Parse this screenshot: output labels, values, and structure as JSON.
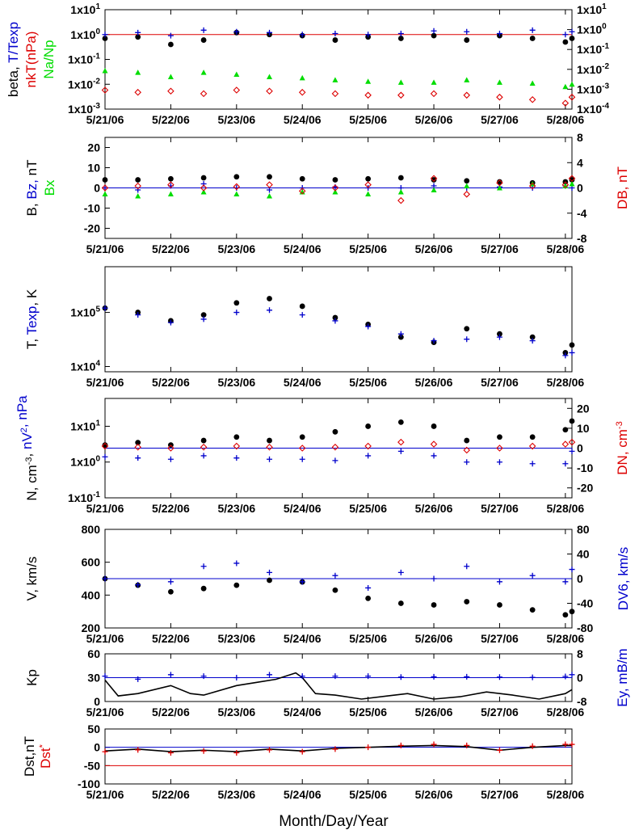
{
  "figure": {
    "x_axis_title": "Month/Day/Year",
    "date_ticks": [
      "5/21/06",
      "5/22/06",
      "5/23/06",
      "5/24/06",
      "5/25/06",
      "5/26/06",
      "5/27/06",
      "5/28/06"
    ],
    "x_range_days": [
      0,
      7.1
    ],
    "colors": {
      "black": "#000000",
      "blue": "#0000cc",
      "red": "#dd0000",
      "green": "#00dd00"
    }
  },
  "chart_data": [
    {
      "type": "scatter",
      "panel": "beta",
      "ylabel_parts": [
        {
          "text": "beta, ",
          "color": "#000000"
        },
        {
          "text": "T/Texp",
          "color": "#0000cc"
        },
        {
          "text": "nkT(nPa)",
          "color": "#dd0000"
        },
        {
          "text": "Na/Np",
          "color": "#00dd00"
        }
      ],
      "y_scale": "log",
      "ylim": [
        0.001,
        10
      ],
      "left_ticks": [
        {
          "base": "1x10",
          "exp": "-3"
        },
        {
          "base": "1x10",
          "exp": "-2"
        },
        {
          "base": "1x10",
          "exp": "-1"
        },
        {
          "base": "1x10",
          "exp": "0"
        },
        {
          "base": "1x10",
          "exp": "1"
        }
      ],
      "right_ylim": [
        0.0001,
        10
      ],
      "right_ticks": [
        {
          "base": "1x10",
          "exp": "-4"
        },
        {
          "base": "1x10",
          "exp": "-3"
        },
        {
          "base": "1x10",
          "exp": "-2"
        },
        {
          "base": "1x10",
          "exp": "-1"
        },
        {
          "base": "1x10",
          "exp": "0"
        },
        {
          "base": "1x10",
          "exp": "1"
        }
      ],
      "reference_line": 1.0,
      "series": [
        {
          "axis": "left",
          "color": "#000000",
          "marker": "dot",
          "x": [
            0,
            0.5,
            1,
            1.5,
            2,
            2.5,
            3,
            3.5,
            4,
            4.5,
            5,
            5.5,
            6,
            6.5,
            7,
            7.1
          ],
          "y": [
            0.7,
            0.8,
            0.4,
            0.6,
            1.2,
            1.0,
            0.9,
            0.6,
            0.8,
            0.7,
            0.9,
            0.6,
            0.9,
            0.7,
            0.5,
            0.7
          ]
        },
        {
          "axis": "left",
          "color": "#0000cc",
          "marker": "plus",
          "x": [
            0,
            0.5,
            1,
            1.5,
            2,
            2.5,
            3,
            3.5,
            4,
            4.5,
            5,
            5.5,
            6,
            6.5,
            7,
            7.1
          ],
          "y": [
            1.0,
            1.2,
            0.9,
            1.5,
            1.3,
            1.2,
            1.0,
            1.1,
            1.0,
            1.1,
            1.4,
            1.3,
            1.1,
            1.5,
            1.0,
            1.3
          ]
        },
        {
          "axis": "left",
          "color": "#00dd00",
          "marker": "triangle",
          "x": [
            0,
            0.5,
            1,
            1.5,
            2,
            2.5,
            3,
            3.5,
            4,
            4.5,
            5,
            5.5,
            6,
            6.5,
            7,
            7.1
          ],
          "y": [
            0.035,
            0.03,
            0.02,
            0.03,
            0.025,
            0.02,
            0.018,
            0.015,
            0.013,
            0.012,
            0.012,
            0.015,
            0.012,
            0.011,
            0.008,
            0.01
          ]
        },
        {
          "axis": "right",
          "color": "#dd0000",
          "marker": "diamond",
          "x": [
            0,
            0.5,
            1,
            1.5,
            2,
            2.5,
            3,
            3.5,
            4,
            4.5,
            5,
            5.5,
            6,
            6.5,
            7,
            7.1
          ],
          "y": [
            0.0009,
            0.0007,
            0.0008,
            0.0006,
            0.0009,
            0.0008,
            0.0007,
            0.0006,
            0.0005,
            0.0005,
            0.0006,
            0.0005,
            0.0004,
            0.0003,
            0.0002,
            0.0004
          ]
        }
      ]
    },
    {
      "type": "scatter",
      "panel": "field",
      "ylabel_parts": [
        {
          "text": "B, ",
          "color": "#000000"
        },
        {
          "text": "Bz, ",
          "color": "#0000cc"
        },
        {
          "text": "nT",
          "color": "#000000"
        },
        {
          "text": "Bx",
          "color": "#00dd00"
        }
      ],
      "ylim": [
        -25,
        25
      ],
      "left_ticks": [
        "20",
        "10",
        "0",
        "-10",
        "-20"
      ],
      "right_label": "DB, nT",
      "right_ylim": [
        -8,
        8
      ],
      "right_ticks": [
        "8",
        "4",
        "0",
        "-4",
        "-8"
      ],
      "reference_line": 0,
      "series": [
        {
          "axis": "left",
          "color": "#000000",
          "marker": "dot",
          "x": [
            0,
            0.5,
            1,
            1.5,
            2,
            2.5,
            3,
            3.5,
            4,
            4.5,
            5,
            5.5,
            6,
            6.5,
            7,
            7.1
          ],
          "y": [
            4,
            4,
            4.5,
            5,
            5.5,
            5.5,
            4.5,
            4,
            4.5,
            5,
            4,
            3.5,
            3,
            2.5,
            3,
            4
          ]
        },
        {
          "axis": "left",
          "color": "#0000cc",
          "marker": "plus",
          "x": [
            0,
            0.5,
            1,
            1.5,
            2,
            2.5,
            3,
            3.5,
            4,
            4.5,
            5,
            5.5,
            6,
            6.5,
            7,
            7.1
          ],
          "y": [
            0,
            -1,
            1,
            2,
            0,
            -1,
            0,
            0.5,
            0,
            0,
            1,
            0,
            0.5,
            0,
            1,
            0
          ]
        },
        {
          "axis": "left",
          "color": "#00dd00",
          "marker": "triangle",
          "x": [
            0,
            0.5,
            1,
            1.5,
            2,
            2.5,
            3,
            3.5,
            4,
            4.5,
            5,
            5.5,
            6,
            6.5,
            7,
            7.1
          ],
          "y": [
            -3,
            -4,
            -3,
            -2,
            -3,
            -4,
            -2,
            -2,
            -3,
            -2,
            -1,
            1,
            0,
            2,
            1,
            2
          ]
        },
        {
          "axis": "right",
          "color": "#dd0000",
          "marker": "diamond",
          "x": [
            0,
            0.5,
            1,
            1.5,
            2,
            2.5,
            3,
            3.5,
            4,
            4.5,
            5,
            5.5,
            6,
            6.5,
            7,
            7.1
          ],
          "y": [
            0,
            0.3,
            0.5,
            0,
            0.2,
            0.5,
            -0.5,
            0,
            0.5,
            -2,
            1.5,
            -1,
            0.8,
            0.3,
            0.5,
            1.5
          ]
        }
      ]
    },
    {
      "type": "scatter",
      "panel": "temperature",
      "ylabel_parts": [
        {
          "text": "T, ",
          "color": "#000000"
        },
        {
          "text": "Texp",
          "color": "#0000cc"
        },
        {
          "text": ", K",
          "color": "#000000"
        }
      ],
      "y_scale": "log",
      "ylim": [
        8000,
        700000
      ],
      "left_ticks": [
        {
          "base": "1x10",
          "exp": "4"
        },
        {
          "base": "1x10",
          "exp": "5"
        }
      ],
      "series": [
        {
          "axis": "left",
          "color": "#000000",
          "marker": "dot",
          "x": [
            0,
            0.5,
            1,
            1.5,
            2,
            2.5,
            3,
            3.5,
            4,
            4.5,
            5,
            5.5,
            6,
            6.5,
            7,
            7.1
          ],
          "y": [
            120000,
            100000,
            70000,
            90000,
            150000,
            180000,
            130000,
            80000,
            60000,
            35000,
            28000,
            50000,
            40000,
            35000,
            18000,
            25000
          ]
        },
        {
          "axis": "left",
          "color": "#0000cc",
          "marker": "plus",
          "x": [
            0,
            0.5,
            1,
            1.5,
            2,
            2.5,
            3,
            3.5,
            4,
            4.5,
            5,
            5.5,
            6,
            6.5,
            7,
            7.1
          ],
          "y": [
            120000,
            90000,
            65000,
            75000,
            100000,
            110000,
            90000,
            70000,
            55000,
            40000,
            30000,
            32000,
            35000,
            30000,
            16000,
            18000
          ]
        }
      ]
    },
    {
      "type": "scatter",
      "panel": "density",
      "ylabel_parts": [
        {
          "text": "N, cm",
          "sup": "-3",
          "color": "#000000"
        },
        {
          "text": ", ",
          "color": "#000000"
        },
        {
          "text": "nV",
          "sup": "2",
          "color": "#0000cc"
        },
        {
          "text": ", nPa",
          "color": "#0000cc"
        }
      ],
      "y_scale": "log",
      "ylim": [
        0.1,
        60
      ],
      "left_ticks": [
        {
          "base": "1x10",
          "exp": "-1"
        },
        {
          "base": "1x10",
          "exp": "0"
        },
        {
          "base": "1x10",
          "exp": "1"
        }
      ],
      "right_label": "DN, cm",
      "right_label_sup": "-3",
      "right_ylim": [
        -25,
        25
      ],
      "right_ticks": [
        "20",
        "10",
        "0",
        "-10",
        "-20"
      ],
      "reference_line": 0,
      "series": [
        {
          "axis": "left",
          "color": "#000000",
          "marker": "dot",
          "x": [
            0,
            0.5,
            1,
            1.5,
            2,
            2.5,
            3,
            3.5,
            4,
            4.5,
            5,
            5.5,
            6,
            6.5,
            7,
            7.1
          ],
          "y": [
            3,
            3.5,
            3,
            4,
            5,
            4,
            5,
            7,
            10,
            13,
            10,
            4,
            5,
            5,
            8,
            14
          ]
        },
        {
          "axis": "left",
          "color": "#0000cc",
          "marker": "plus",
          "x": [
            0,
            0.5,
            1,
            1.5,
            2,
            2.5,
            3,
            3.5,
            4,
            4.5,
            5,
            5.5,
            6,
            6.5,
            7,
            7.1
          ],
          "y": [
            1.4,
            1.3,
            1.2,
            1.5,
            1.3,
            1.2,
            1.2,
            1.1,
            1.5,
            2,
            1.5,
            1,
            1,
            0.9,
            0.9,
            2
          ]
        },
        {
          "axis": "right",
          "color": "#dd0000",
          "marker": "diamond",
          "x": [
            0,
            0.5,
            1,
            1.5,
            2,
            2.5,
            3,
            3.5,
            4,
            4.5,
            5,
            5.5,
            6,
            6.5,
            7,
            7.1
          ],
          "y": [
            1,
            0.5,
            0,
            0.5,
            1,
            0.5,
            0,
            0.5,
            1,
            3,
            2,
            -1,
            0,
            1,
            2,
            3
          ]
        }
      ]
    },
    {
      "type": "scatter",
      "panel": "velocity",
      "ylabel_parts": [
        {
          "text": "V, km/s",
          "color": "#000000"
        }
      ],
      "ylim": [
        200,
        800
      ],
      "left_ticks": [
        "200",
        "400",
        "600",
        "800"
      ],
      "right_label": "DV6, km/s",
      "right_ylim": [
        -80,
        80
      ],
      "right_ticks": [
        "-80",
        "-40",
        "0",
        "40",
        "80"
      ],
      "reference_line": 0,
      "series": [
        {
          "axis": "left",
          "color": "#000000",
          "marker": "dot",
          "x": [
            0,
            0.5,
            1,
            1.5,
            2,
            2.5,
            3,
            3.5,
            4,
            4.5,
            5,
            5.5,
            6,
            6.5,
            7,
            7.1
          ],
          "y": [
            500,
            460,
            420,
            440,
            460,
            490,
            480,
            430,
            380,
            350,
            340,
            360,
            340,
            310,
            280,
            300
          ]
        },
        {
          "axis": "right",
          "color": "#0000cc",
          "marker": "plus",
          "x": [
            0,
            0.5,
            1,
            1.5,
            2,
            2.5,
            3,
            3.5,
            4,
            4.5,
            5,
            5.5,
            6,
            6.5,
            7,
            7.1
          ],
          "y": [
            0,
            -10,
            -5,
            20,
            25,
            10,
            -5,
            5,
            -15,
            10,
            0,
            20,
            -5,
            5,
            -5,
            15
          ]
        }
      ]
    },
    {
      "type": "line",
      "panel": "kp",
      "ylabel_parts": [
        {
          "text": "Kp",
          "color": "#000000"
        }
      ],
      "ylim": [
        0,
        60
      ],
      "left_ticks": [
        "0",
        "30",
        "60"
      ],
      "right_label": "Ey,  mB/m",
      "right_ylim": [
        -8,
        8
      ],
      "right_ticks": [
        "-8",
        "0",
        "8"
      ],
      "reference_line": 0,
      "series": [
        {
          "axis": "left",
          "color": "#000000",
          "marker": "line",
          "x": [
            0,
            0.2,
            0.5,
            1,
            1.3,
            1.5,
            2,
            2.3,
            2.6,
            2.9,
            3,
            3.2,
            3.5,
            3.9,
            4.3,
            4.6,
            5,
            5.4,
            5.8,
            6.2,
            6.6,
            7,
            7.1
          ],
          "y": [
            27,
            7,
            10,
            20,
            10,
            8,
            20,
            24,
            28,
            36,
            30,
            10,
            8,
            3,
            7,
            10,
            3,
            6,
            12,
            8,
            3,
            10,
            15
          ]
        },
        {
          "axis": "right",
          "color": "#0000cc",
          "marker": "plus",
          "x": [
            0,
            0.5,
            1,
            1.5,
            2,
            2.5,
            3,
            3.5,
            4,
            4.5,
            5,
            5.5,
            6,
            6.5,
            7,
            7.1
          ],
          "y": [
            0.5,
            -0.5,
            1,
            0.5,
            0,
            1,
            0.5,
            0.5,
            0.5,
            0.2,
            0.3,
            0.3,
            0.2,
            0.1,
            0.4,
            1
          ]
        }
      ]
    },
    {
      "type": "line",
      "panel": "dst",
      "ylabel_parts": [
        {
          "text": "Dst,nT",
          "color": "#000000"
        },
        {
          "text": "Dst",
          "sup": "*",
          "color": "#dd0000"
        }
      ],
      "ylim": [
        -100,
        50
      ],
      "left_ticks": [
        "-100",
        "-50",
        "0",
        "50"
      ],
      "threshold_line": -50,
      "reference_line": 0,
      "series": [
        {
          "axis": "left",
          "color": "#000000",
          "marker": "line",
          "x": [
            0,
            0.5,
            1,
            1.5,
            2,
            2.5,
            3,
            3.5,
            4,
            4.5,
            5,
            5.5,
            6,
            6.5,
            7,
            7.1
          ],
          "y": [
            -10,
            -5,
            -12,
            -8,
            -12,
            -5,
            -10,
            -3,
            0,
            3,
            5,
            2,
            -8,
            0,
            5,
            5
          ]
        },
        {
          "axis": "left",
          "color": "#dd0000",
          "marker": "plus",
          "x": [
            0,
            0.5,
            1,
            1.5,
            2,
            2.5,
            3,
            3.5,
            4,
            4.5,
            5,
            5.5,
            6,
            6.5,
            7,
            7.1
          ],
          "y": [
            -12,
            -7,
            -15,
            -10,
            -15,
            -7,
            -12,
            -5,
            0,
            5,
            8,
            5,
            -8,
            3,
            8,
            8
          ]
        }
      ]
    }
  ]
}
